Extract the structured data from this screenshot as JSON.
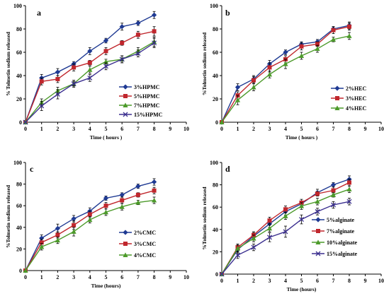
{
  "chart_data": [
    {
      "type": "line",
      "panel_label": "a",
      "x": [
        0,
        1,
        2,
        3,
        4,
        5,
        6,
        7,
        8
      ],
      "xlim": [
        0,
        10
      ],
      "ylim": [
        0,
        100
      ],
      "xticks": [
        0,
        1,
        2,
        3,
        4,
        5,
        6,
        7,
        8,
        9,
        10
      ],
      "yticks": [
        0,
        20,
        40,
        60,
        80,
        100
      ],
      "xlabel": "Time ( hours )",
      "ylabel": "% Tolmetin sodium released",
      "legend_position": "right",
      "series": [
        {
          "name": "3%HPMC",
          "marker": "diamond",
          "color": "#1f3a93",
          "values": [
            0,
            38,
            43,
            50,
            61,
            70,
            82,
            85,
            92
          ],
          "err": [
            0,
            3,
            3,
            2,
            3,
            2,
            3,
            2,
            3
          ]
        },
        {
          "name": "5%HPMC",
          "marker": "square",
          "color": "#c0272d",
          "values": [
            0,
            35,
            37,
            47,
            51,
            61,
            68,
            75,
            78
          ],
          "err": [
            0,
            3,
            3,
            3,
            2,
            3,
            2,
            3,
            4
          ]
        },
        {
          "name": "7%HPMC",
          "marker": "triangle",
          "color": "#4c9a2a",
          "values": [
            0,
            17,
            27,
            33,
            45,
            52,
            54,
            61,
            69
          ],
          "err": [
            0,
            3,
            3,
            2,
            3,
            2,
            3,
            3,
            4
          ]
        },
        {
          "name": "15%HPMC",
          "marker": "x",
          "color": "#3b2f8f",
          "values": [
            0,
            14,
            24,
            33,
            38,
            48,
            54,
            59,
            68
          ],
          "err": [
            0,
            4,
            4,
            3,
            3,
            3,
            3,
            3,
            4
          ]
        }
      ]
    },
    {
      "type": "line",
      "panel_label": "b",
      "x": [
        0,
        1,
        2,
        3,
        4,
        5,
        6,
        7,
        8
      ],
      "xlim": [
        0,
        10
      ],
      "ylim": [
        0,
        100
      ],
      "xticks": [
        0,
        1,
        2,
        3,
        4,
        5,
        6,
        7,
        8,
        9,
        10
      ],
      "yticks": [
        0,
        20,
        40,
        60,
        80,
        100
      ],
      "xlabel": "Time ( hours )",
      "ylabel": "%Tolmetin sodium released",
      "legend_position": "right",
      "series": [
        {
          "name": "2%HEC",
          "marker": "diamond",
          "color": "#1f3a93",
          "values": [
            0,
            30,
            37,
            50,
            60,
            67,
            69,
            80,
            83
          ],
          "err": [
            0,
            3,
            3,
            3,
            2,
            2,
            2,
            2,
            3
          ]
        },
        {
          "name": "3%HEC",
          "marker": "square",
          "color": "#c0272d",
          "values": [
            0,
            23,
            36,
            47,
            54,
            65,
            67,
            79,
            82
          ],
          "err": [
            0,
            3,
            3,
            4,
            3,
            3,
            2,
            3,
            3
          ]
        },
        {
          "name": "4%HEC",
          "marker": "triangle",
          "color": "#4c9a2a",
          "values": [
            0,
            19,
            30,
            41,
            50,
            57,
            63,
            71,
            74
          ],
          "err": [
            0,
            4,
            3,
            3,
            4,
            3,
            3,
            2,
            3
          ]
        }
      ]
    },
    {
      "type": "line",
      "panel_label": "c",
      "x": [
        0,
        1,
        2,
        3,
        4,
        5,
        6,
        7,
        8
      ],
      "xlim": [
        0,
        10
      ],
      "ylim": [
        0,
        100
      ],
      "xticks": [
        0,
        1,
        2,
        3,
        4,
        5,
        6,
        7,
        8,
        9,
        10
      ],
      "yticks": [
        0,
        20,
        40,
        60,
        80,
        100
      ],
      "xlabel": "Time (hours)",
      "ylabel": "%Tolmetin sodium released",
      "legend_position": "right",
      "series": [
        {
          "name": "2%CMC",
          "marker": "diamond",
          "color": "#1f3a93",
          "values": [
            0,
            30,
            39,
            48,
            55,
            67,
            70,
            78,
            82
          ],
          "err": [
            0,
            3,
            4,
            3,
            3,
            2,
            2,
            2,
            3
          ]
        },
        {
          "name": "3%CMC",
          "marker": "square",
          "color": "#c0272d",
          "values": [
            0,
            26,
            33,
            42,
            52,
            60,
            65,
            70,
            74
          ],
          "err": [
            0,
            3,
            3,
            4,
            3,
            3,
            3,
            2,
            3
          ]
        },
        {
          "name": "4%CMC",
          "marker": "triangle",
          "color": "#4c9a2a",
          "values": [
            0,
            22,
            28,
            36,
            47,
            54,
            59,
            63,
            65
          ],
          "err": [
            0,
            3,
            3,
            4,
            3,
            3,
            3,
            2,
            3
          ]
        }
      ]
    },
    {
      "type": "line",
      "panel_label": "d",
      "x": [
        0,
        1,
        2,
        3,
        4,
        5,
        6,
        7,
        8
      ],
      "xlim": [
        0,
        10
      ],
      "ylim": [
        0,
        100
      ],
      "xticks": [
        0,
        1,
        2,
        3,
        4,
        5,
        6,
        7,
        8,
        9,
        10
      ],
      "yticks": [
        0,
        20,
        40,
        60,
        80,
        100
      ],
      "xlabel": "Time (hours)",
      "ylabel": "%Tolmetin sodium released",
      "legend_position": "right",
      "series": [
        {
          "name": "5%alginate",
          "marker": "diamond",
          "color": "#1f3a93",
          "values": [
            0,
            22,
            34,
            45,
            56,
            63,
            73,
            80,
            85
          ],
          "err": [
            0,
            3,
            3,
            3,
            3,
            2,
            3,
            2,
            3
          ]
        },
        {
          "name": "7%alginate",
          "marker": "square",
          "color": "#c0272d",
          "values": [
            0,
            24,
            35,
            48,
            58,
            64,
            72,
            75,
            82
          ],
          "err": [
            0,
            3,
            3,
            3,
            3,
            3,
            2,
            3,
            3
          ]
        },
        {
          "name": "10%alginate",
          "marker": "triangle",
          "color": "#4c9a2a",
          "values": [
            0,
            23,
            32,
            41,
            52,
            61,
            65,
            71,
            76
          ],
          "err": [
            0,
            3,
            3,
            3,
            3,
            3,
            3,
            2,
            3
          ]
        },
        {
          "name": "15%alginate",
          "marker": "x",
          "color": "#3b2f8f",
          "values": [
            0,
            17,
            24,
            33,
            38,
            49,
            56,
            62,
            65
          ],
          "err": [
            0,
            3,
            3,
            4,
            5,
            4,
            3,
            3,
            3
          ]
        }
      ]
    }
  ]
}
